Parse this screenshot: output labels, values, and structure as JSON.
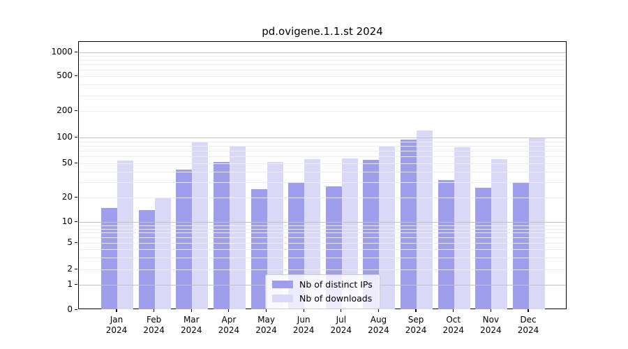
{
  "title": "pd.ovigene.1.1.st 2024",
  "colors": {
    "distinct_ips": "#9e9eed",
    "downloads": "#d9d9f7",
    "grid_major": "#c2c2c2",
    "grid_minor": "#ededed"
  },
  "legend": {
    "items": [
      {
        "label": "Nb of distinct IPs",
        "series": "distinct_ips"
      },
      {
        "label": "Nb of downloads",
        "series": "downloads"
      }
    ]
  },
  "x_axis": {
    "months": [
      "Jan",
      "Feb",
      "Mar",
      "Apr",
      "May",
      "Jun",
      "Jul",
      "Aug",
      "Sep",
      "Oct",
      "Nov",
      "Dec"
    ],
    "year": "2024"
  },
  "y_axis": {
    "tick_values": [
      0,
      1,
      2,
      5,
      10,
      20,
      50,
      100,
      200,
      500,
      1000
    ]
  },
  "chart_data": {
    "type": "bar",
    "title": "pd.ovigene.1.1.st 2024",
    "categories": [
      "Jan 2024",
      "Feb 2024",
      "Mar 2024",
      "Apr 2024",
      "May 2024",
      "Jun 2024",
      "Jul 2024",
      "Aug 2024",
      "Sep 2024",
      "Oct 2024",
      "Nov 2024",
      "Dec 2024"
    ],
    "series": [
      {
        "name": "Nb of distinct IPs",
        "color": "#9e9eed",
        "values": [
          15,
          14,
          42,
          52,
          25,
          30,
          27,
          55,
          95,
          32,
          26,
          30
        ]
      },
      {
        "name": "Nb of downloads",
        "color": "#d9d9f7",
        "values": [
          54,
          20,
          87,
          80,
          52,
          56,
          57,
          78,
          120,
          77,
          56,
          100
        ]
      }
    ],
    "xlabel": "",
    "ylabel": "",
    "yscale": "symlog",
    "y_ticks": [
      0,
      1,
      2,
      5,
      10,
      20,
      50,
      100,
      200,
      500,
      1000
    ],
    "ylim": [
      0,
      1250
    ],
    "grid": true,
    "grid_above_bars": true,
    "legend_position": "lower center"
  }
}
